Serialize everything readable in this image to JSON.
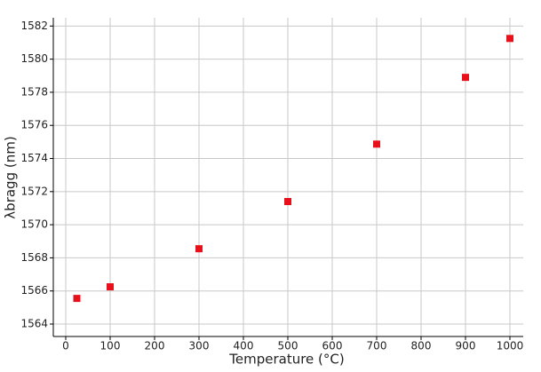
{
  "chart_data": {
    "type": "scatter",
    "x_label": "Temperature (°C)",
    "y_label": "λbragg (nm)",
    "x": [
      25,
      100,
      300,
      500,
      700,
      900,
      1000
    ],
    "series": [
      {
        "color": "#e8101a",
        "values": [
          1565.55,
          1566.25,
          1568.55,
          1571.4,
          1574.87,
          1578.9,
          1581.25
        ]
      }
    ],
    "xlim": [
      -28,
      1030
    ],
    "ylim": [
      1563.25,
      1582.5
    ],
    "xticks": [
      0,
      100,
      200,
      300,
      400,
      500,
      600,
      700,
      800,
      900,
      1000
    ],
    "yticks": [
      1564,
      1566,
      1568,
      1570,
      1572,
      1574,
      1576,
      1578,
      1580,
      1582
    ],
    "grid": true
  }
}
